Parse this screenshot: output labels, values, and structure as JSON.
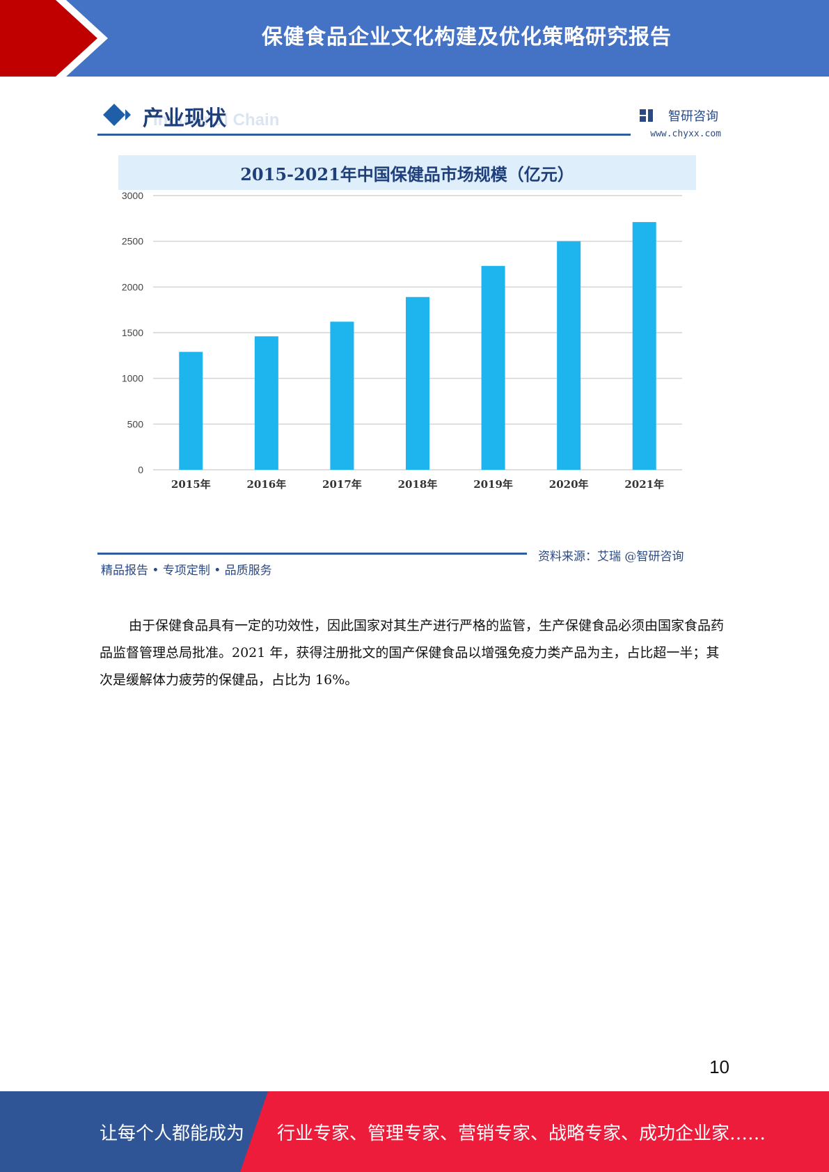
{
  "header": {
    "title": "保健食品企业文化构建及优化策略研究报告"
  },
  "figure": {
    "section_title": "产业现状",
    "section_subtitle": "Industrial Chain",
    "brand_name": "智研咨询",
    "brand_url": "www.chyxx.com",
    "chart_title": "2015-2021年中国保健品市场规模（亿元）",
    "footer_left": "精品报告 • 专项定制 • 品质服务",
    "source": "资料来源：艾瑞 @智研咨询"
  },
  "chart_data": {
    "type": "bar",
    "title": "2015-2021年中国保健品市场规模（亿元）",
    "categories": [
      "2015年",
      "2016年",
      "2017年",
      "2018年",
      "2019年",
      "2020年",
      "2021年"
    ],
    "values": [
      1290,
      1460,
      1620,
      1890,
      2230,
      2500,
      2710
    ],
    "yticks": [
      0,
      500,
      1000,
      1500,
      2000,
      2500,
      3000
    ],
    "ylim": [
      0,
      3000
    ],
    "xlabel": "",
    "ylabel": "",
    "grid": true,
    "bar_color": "#1eb4ee"
  },
  "body": {
    "paragraph": "由于保健食品具有一定的功效性，因此国家对其生产进行严格的监管，生产保健食品必须由国家食品药品监督管理总局批准。2021 年，获得注册批文的国产保健食品以增强免疫力类产品为主，占比超一半；其次是缓解体力疲劳的保健品，占比为 16%。"
  },
  "page_number": "10",
  "footer": {
    "slogan_left": "让每个人都能成为",
    "slogan_right": "行业专家、管理专家、营销专家、战略专家、成功企业家……"
  },
  "colors": {
    "header_blue": "#4472c4",
    "header_red": "#c00000",
    "footer_blue": "#2f5597",
    "footer_red": "#ed1c3a"
  }
}
